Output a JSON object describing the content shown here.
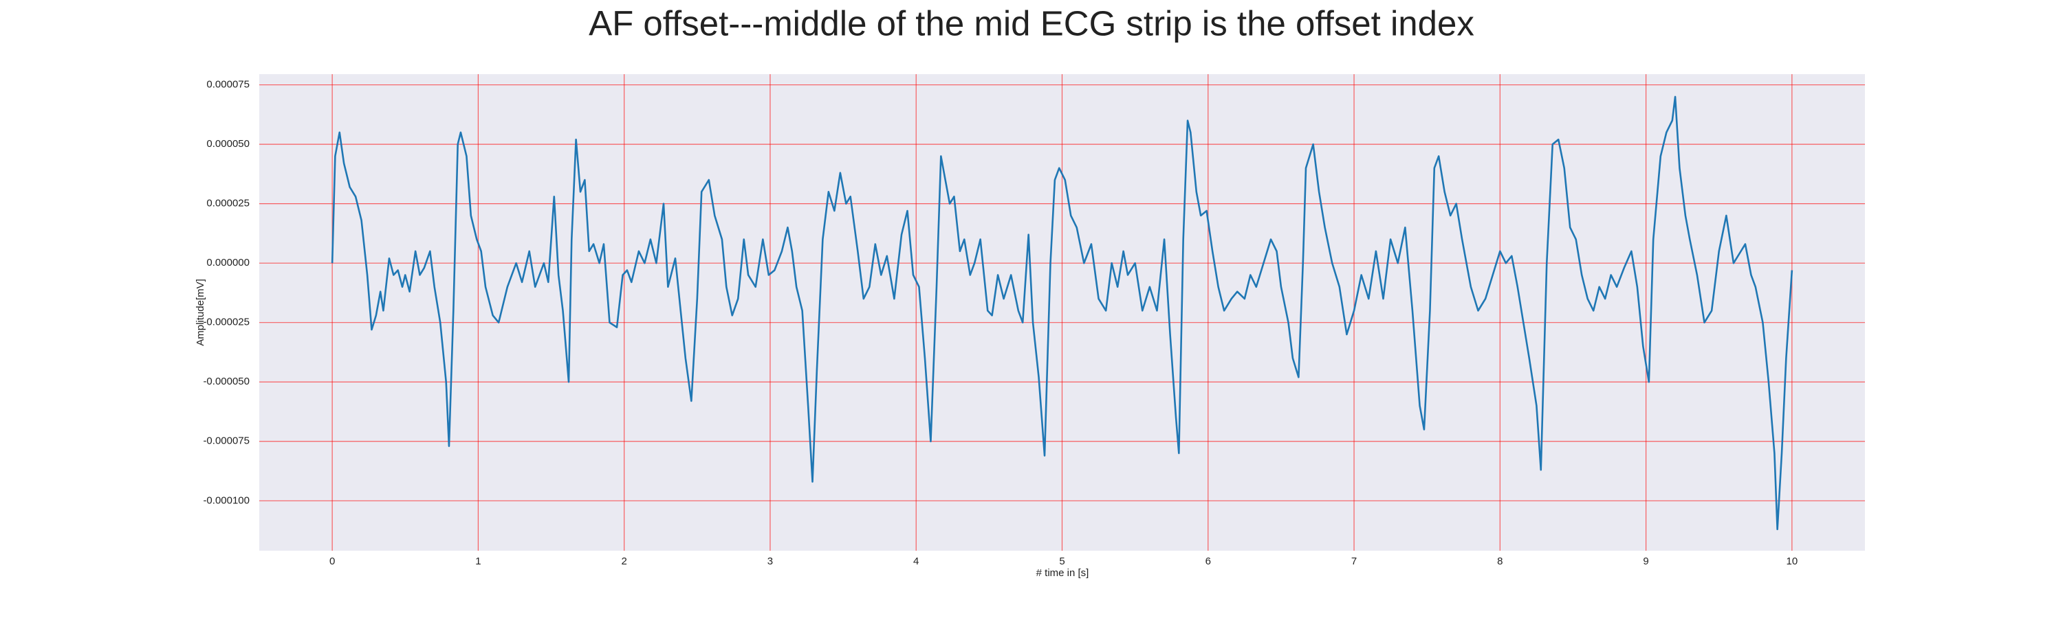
{
  "chart_data": {
    "type": "line",
    "title": "AF offset---middle of the mid ECG strip is the offset index",
    "xlabel": "# time in [s]",
    "ylabel": "Amplitude[mV]",
    "color": "#1f77b4",
    "grid": true,
    "grid_color": "#ff0000",
    "background": "#eaeaf2",
    "xlim": [
      -0.5,
      10.5
    ],
    "ylim": [
      -0.000121,
      7.95e-05
    ],
    "xticks": [
      0,
      1,
      2,
      3,
      4,
      5,
      6,
      7,
      8,
      9,
      10
    ],
    "yticks": [
      {
        "value": -0.0001,
        "label": "-0.000100"
      },
      -7.5e-05,
      {
        "value": -5e-05,
        "label": "-0.000050"
      },
      -2.5e-05,
      {
        "value": 0,
        "label": "0.000000"
      },
      2.5e-05,
      {
        "value": 5e-05,
        "label": "0.000050"
      },
      7.5e-05
    ],
    "x": [
      0,
      0.02,
      0.05,
      0.08,
      0.12,
      0.16,
      0.2,
      0.24,
      0.27,
      0.3,
      0.33,
      0.35,
      0.39,
      0.42,
      0.45,
      0.48,
      0.5,
      0.53,
      0.57,
      0.6,
      0.63,
      0.67,
      0.7,
      0.74,
      0.78,
      0.8,
      0.83,
      0.86,
      0.88,
      0.92,
      0.95,
      0.99,
      1.02,
      1.05,
      1.1,
      1.14,
      1.2,
      1.26,
      1.3,
      1.35,
      1.39,
      1.45,
      1.48,
      1.52,
      1.55,
      1.58,
      1.62,
      1.64,
      1.67,
      1.7,
      1.73,
      1.76,
      1.79,
      1.83,
      1.86,
      1.9,
      1.95,
      1.99,
      2.02,
      2.05,
      2.1,
      2.14,
      2.18,
      2.22,
      2.27,
      2.3,
      2.35,
      2.42,
      2.46,
      2.5,
      2.53,
      2.58,
      2.62,
      2.67,
      2.7,
      2.74,
      2.78,
      2.82,
      2.85,
      2.9,
      2.95,
      2.99,
      3.03,
      3.08,
      3.12,
      3.15,
      3.18,
      3.22,
      3.26,
      3.29,
      3.32,
      3.36,
      3.4,
      3.44,
      3.48,
      3.52,
      3.55,
      3.6,
      3.64,
      3.68,
      3.72,
      3.76,
      3.8,
      3.85,
      3.9,
      3.94,
      3.98,
      4.02,
      4.06,
      4.1,
      4.14,
      4.17,
      4.2,
      4.23,
      4.26,
      4.3,
      4.33,
      4.37,
      4.4,
      4.44,
      4.49,
      4.52,
      4.56,
      4.6,
      4.65,
      4.7,
      4.73,
      4.77,
      4.8,
      4.84,
      4.88,
      4.92,
      4.95,
      4.98,
      5.02,
      5.06,
      5.1,
      5.15,
      5.2,
      5.25,
      5.3,
      5.34,
      5.38,
      5.42,
      5.45,
      5.5,
      5.55,
      5.6,
      5.65,
      5.7,
      5.74,
      5.78,
      5.8,
      5.83,
      5.86,
      5.88,
      5.92,
      5.95,
      5.99,
      6.03,
      6.07,
      6.11,
      6.16,
      6.2,
      6.25,
      6.29,
      6.33,
      6.37,
      6.43,
      6.47,
      6.5,
      6.55,
      6.58,
      6.62,
      6.65,
      6.67,
      6.72,
      6.76,
      6.8,
      6.85,
      6.9,
      6.95,
      7.0,
      7.05,
      7.1,
      7.15,
      7.2,
      7.25,
      7.3,
      7.35,
      7.4,
      7.45,
      7.48,
      7.52,
      7.55,
      7.58,
      7.62,
      7.66,
      7.7,
      7.74,
      7.8,
      7.85,
      7.9,
      7.95,
      8.0,
      8.04,
      8.08,
      8.12,
      8.16,
      8.2,
      8.25,
      8.28,
      8.32,
      8.36,
      8.4,
      8.44,
      8.48,
      8.52,
      8.56,
      8.6,
      8.64,
      8.68,
      8.72,
      8.76,
      8.8,
      8.85,
      8.9,
      8.94,
      8.98,
      9.02,
      9.05,
      9.1,
      9.14,
      9.18,
      9.2,
      9.23,
      9.27,
      9.3,
      9.35,
      9.4,
      9.45,
      9.5,
      9.55,
      9.6,
      9.65,
      9.68,
      9.72,
      9.75,
      9.8,
      9.84,
      9.88,
      9.9,
      9.93,
      9.96,
      10.0
    ],
    "values": [
      0,
      4.5e-05,
      5.5e-05,
      4.2e-05,
      3.2e-05,
      2.8e-05,
      1.8e-05,
      -5e-06,
      -2.8e-05,
      -2.2e-05,
      -1.2e-05,
      -2e-05,
      2e-06,
      -5e-06,
      -3e-06,
      -1e-05,
      -5e-06,
      -1.2e-05,
      5e-06,
      -5e-06,
      -2e-06,
      5e-06,
      -1e-05,
      -2.5e-05,
      -5e-05,
      -7.7e-05,
      -2e-05,
      5e-05,
      5.5e-05,
      4.5e-05,
      2e-05,
      1e-05,
      5e-06,
      -1e-05,
      -2.2e-05,
      -2.5e-05,
      -1e-05,
      0,
      -8e-06,
      5e-06,
      -1e-05,
      0,
      -8e-06,
      2.8e-05,
      -5e-06,
      -2e-05,
      -5e-05,
      1e-05,
      5.2e-05,
      3e-05,
      3.5e-05,
      5e-06,
      8e-06,
      0,
      8e-06,
      -2.5e-05,
      -2.7e-05,
      -5e-06,
      -3e-06,
      -8e-06,
      5e-06,
      0,
      1e-05,
      0,
      2.5e-05,
      -1e-05,
      2e-06,
      -4e-05,
      -5.8e-05,
      -1.5e-05,
      3e-05,
      3.5e-05,
      2e-05,
      1e-05,
      -1e-05,
      -2.2e-05,
      -1.5e-05,
      1e-05,
      -5e-06,
      -1e-05,
      1e-05,
      -5e-06,
      -3e-06,
      5e-06,
      1.5e-05,
      5e-06,
      -1e-05,
      -2e-05,
      -6e-05,
      -9.2e-05,
      -4.5e-05,
      1e-05,
      3e-05,
      2.2e-05,
      3.8e-05,
      2.5e-05,
      2.8e-05,
      5e-06,
      -1.5e-05,
      -1e-05,
      8e-06,
      -5e-06,
      3e-06,
      -1.5e-05,
      1.2e-05,
      2.2e-05,
      -5e-06,
      -1e-05,
      -4e-05,
      -7.5e-05,
      -1e-05,
      4.5e-05,
      3.5e-05,
      2.5e-05,
      2.8e-05,
      5e-06,
      1e-05,
      -5e-06,
      0,
      1e-05,
      -2e-05,
      -2.2e-05,
      -5e-06,
      -1.5e-05,
      -5e-06,
      -2e-05,
      -2.5e-05,
      1.2e-05,
      -2.5e-05,
      -4.8e-05,
      -8.1e-05,
      0,
      3.5e-05,
      4e-05,
      3.5e-05,
      2e-05,
      1.5e-05,
      0,
      8e-06,
      -1.5e-05,
      -2e-05,
      0,
      -1e-05,
      5e-06,
      -5e-06,
      0,
      -2e-05,
      -1e-05,
      -2e-05,
      1e-05,
      -3e-05,
      -6.5e-05,
      -8e-05,
      1e-05,
      6e-05,
      5.5e-05,
      3e-05,
      2e-05,
      2.2e-05,
      5e-06,
      -1e-05,
      -2e-05,
      -1.5e-05,
      -1.2e-05,
      -1.5e-05,
      -5e-06,
      -1e-05,
      -2e-06,
      1e-05,
      5e-06,
      -1e-05,
      -2.5e-05,
      -4e-05,
      -4.8e-05,
      0,
      4e-05,
      5e-05,
      3e-05,
      1.5e-05,
      0,
      -1e-05,
      -3e-05,
      -2e-05,
      -5e-06,
      -1.5e-05,
      5e-06,
      -1.5e-05,
      1e-05,
      0,
      1.5e-05,
      -2e-05,
      -6e-05,
      -7e-05,
      -2e-05,
      4e-05,
      4.5e-05,
      3e-05,
      2e-05,
      2.5e-05,
      1e-05,
      -1e-05,
      -2e-05,
      -1.5e-05,
      -5e-06,
      5e-06,
      0,
      3e-06,
      -1e-05,
      -2.5e-05,
      -4e-05,
      -6e-05,
      -8.7e-05,
      0,
      5e-05,
      5.2e-05,
      4e-05,
      1.5e-05,
      1e-05,
      -5e-06,
      -1.5e-05,
      -2e-05,
      -1e-05,
      -1.5e-05,
      -5e-06,
      -1e-05,
      -2e-06,
      5e-06,
      -1e-05,
      -3.5e-05,
      -5e-05,
      1e-05,
      4.5e-05,
      5.5e-05,
      6e-05,
      7e-05,
      4e-05,
      2e-05,
      1e-05,
      -5e-06,
      -2.5e-05,
      -2e-05,
      5e-06,
      2e-05,
      0,
      5e-06,
      8e-06,
      -5e-06,
      -1e-05,
      -2.5e-05,
      -5e-05,
      -8e-05,
      -0.000112,
      -8e-05,
      -4e-05,
      -3e-06
    ]
  }
}
